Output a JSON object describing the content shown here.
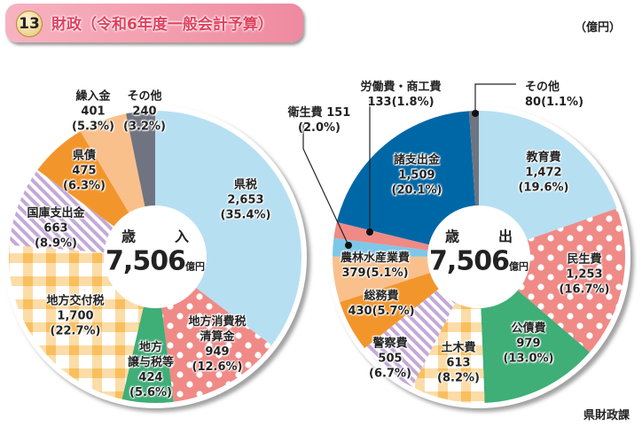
{
  "header": {
    "number": "13",
    "title": "財政（令和6年度一般会計予算）",
    "unit": "（億円）"
  },
  "source": "県財政課",
  "chart_data": [
    {
      "type": "pie",
      "title": "歳　入",
      "total": "7,506",
      "total_unit": "億円",
      "start": "top, clockwise",
      "slices": [
        {
          "label": "県税",
          "value": 2653,
          "percent": 35.4,
          "color": "#b7dff2",
          "pattern": "solid"
        },
        {
          "label": "地方消費税清算金",
          "value": 949,
          "percent": 12.6,
          "color": "#f08a86",
          "pattern": "dots"
        },
        {
          "label": "地方譲与税等",
          "value": 424,
          "percent": 5.6,
          "color": "#3fae77",
          "pattern": "solid"
        },
        {
          "label": "地方交付税",
          "value": 1700,
          "percent": 22.7,
          "color": "#f9bf5e",
          "pattern": "check"
        },
        {
          "label": "国庫支出金",
          "value": 663,
          "percent": 8.9,
          "color": "#c4a9d8",
          "pattern": "stripes"
        },
        {
          "label": "県債",
          "value": 475,
          "percent": 6.3,
          "color": "#f2962c",
          "pattern": "solid"
        },
        {
          "label": "繰入金",
          "value": 401,
          "percent": 5.3,
          "color": "#f9c08c",
          "pattern": "solid"
        },
        {
          "label": "その他",
          "value": 240,
          "percent": 3.2,
          "color": "#6f7480",
          "pattern": "solid"
        }
      ]
    },
    {
      "type": "pie",
      "title": "歳　出",
      "total": "7,506",
      "total_unit": "億円",
      "start": "top, clockwise",
      "slices": [
        {
          "label": "教育費",
          "value": 1472,
          "percent": 19.6,
          "color": "#b7dff2",
          "pattern": "solid"
        },
        {
          "label": "民生費",
          "value": 1253,
          "percent": 16.7,
          "color": "#f08a86",
          "pattern": "dots"
        },
        {
          "label": "公債費",
          "value": 979,
          "percent": 13.0,
          "color": "#3fae77",
          "pattern": "solid"
        },
        {
          "label": "土木費",
          "value": 613,
          "percent": 8.2,
          "color": "#f9bf5e",
          "pattern": "check"
        },
        {
          "label": "警察費",
          "value": 505,
          "percent": 6.7,
          "color": "#c4a9d8",
          "pattern": "stripes"
        },
        {
          "label": "総務費",
          "value": 430,
          "percent": 5.7,
          "color": "#f2962c",
          "pattern": "solid"
        },
        {
          "label": "農林水産業費",
          "value": 379,
          "percent": 5.1,
          "color": "#f9c08c",
          "pattern": "solid"
        },
        {
          "label": "衛生費",
          "value": 151,
          "percent": 2.0,
          "color": "#7cc8e8",
          "pattern": "solid"
        },
        {
          "label": "労働費・商工費",
          "value": 133,
          "percent": 1.8,
          "color": "#f08a86",
          "pattern": "solid"
        },
        {
          "label": "諸支出金",
          "value": 1509,
          "percent": 20.1,
          "color": "#0067a6",
          "pattern": "solid"
        },
        {
          "label": "その他",
          "value": 80,
          "percent": 1.1,
          "color": "#6f7480",
          "pattern": "solid"
        }
      ]
    }
  ]
}
